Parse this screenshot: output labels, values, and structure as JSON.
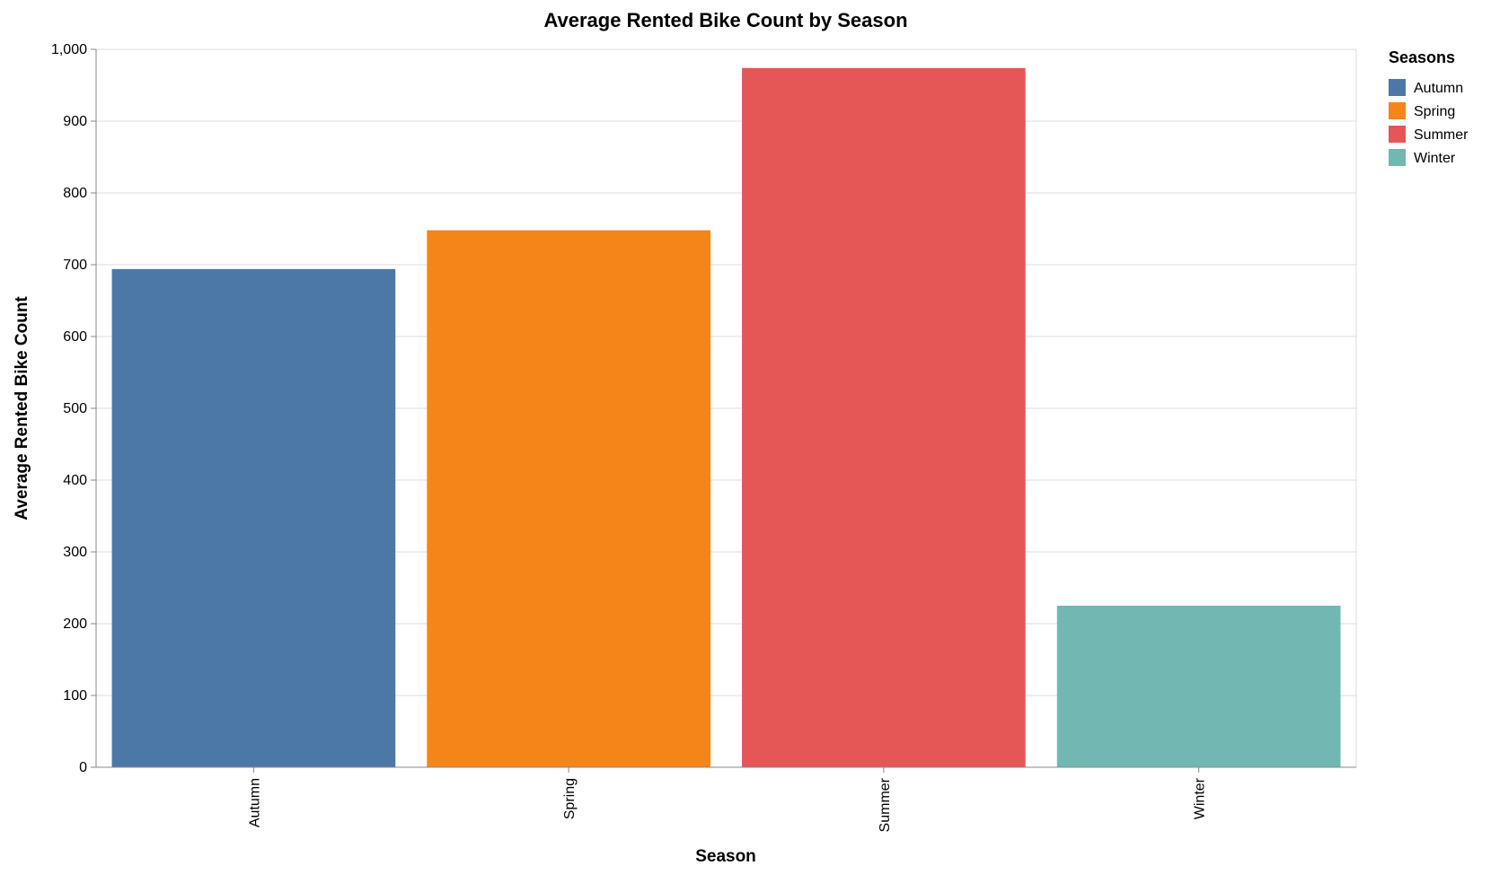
{
  "chart_data": {
    "type": "bar",
    "title": "Average Rented Bike Count by Season",
    "xlabel": "Season",
    "ylabel": "Average Rented Bike Count",
    "categories": [
      "Autumn",
      "Spring",
      "Summer",
      "Winter"
    ],
    "values": [
      694,
      748,
      974,
      225
    ],
    "colors": [
      "#4c78a8",
      "#f58518",
      "#e45756",
      "#72b7b2"
    ],
    "ylim": [
      0,
      1000
    ],
    "yticks": [
      0,
      100,
      200,
      300,
      400,
      500,
      600,
      700,
      800,
      900,
      1000
    ],
    "ytick_labels": [
      "0",
      "100",
      "200",
      "300",
      "400",
      "500",
      "600",
      "700",
      "800",
      "900",
      "1,000"
    ],
    "grid": true,
    "legend": {
      "title": "Seasons",
      "placement": "top-right",
      "entries": [
        "Autumn",
        "Spring",
        "Summer",
        "Winter"
      ]
    }
  }
}
